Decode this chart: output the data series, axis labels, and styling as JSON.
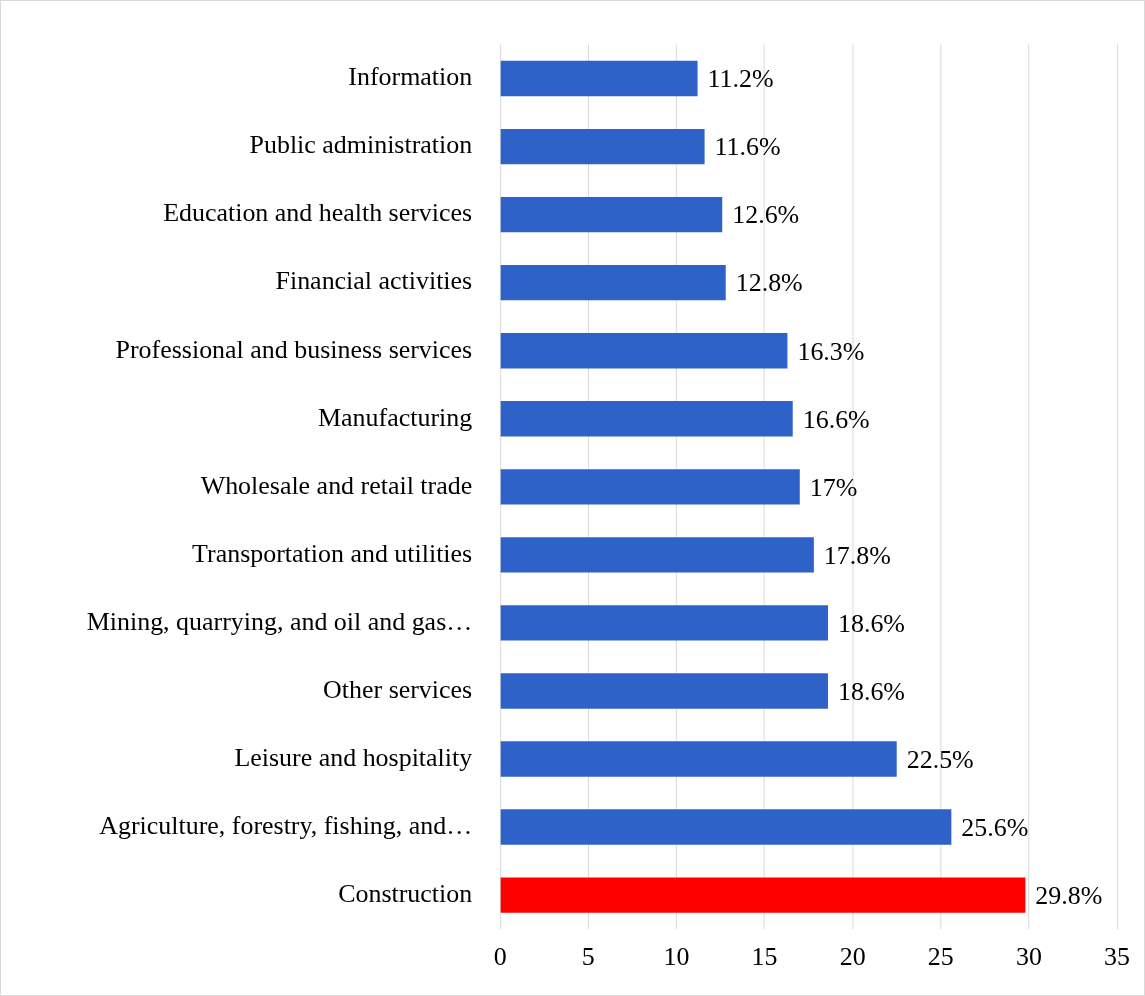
{
  "chart_data": {
    "type": "bar",
    "orientation": "horizontal",
    "categories": [
      "Information",
      "Public administration",
      "Education and health services",
      "Financial activities",
      "Professional and business services",
      "Manufacturing",
      "Wholesale and retail trade",
      "Transportation and utilities",
      "Mining, quarrying, and oil and gas…",
      "Other services",
      "Leisure and hospitality",
      "Agriculture, forestry, fishing, and…",
      "Construction"
    ],
    "values": [
      11.2,
      11.6,
      12.6,
      12.8,
      16.3,
      16.6,
      17,
      17.8,
      18.6,
      18.6,
      22.5,
      25.6,
      29.8
    ],
    "colors": [
      "#2e62c8",
      "#2e62c8",
      "#2e62c8",
      "#2e62c8",
      "#2e62c8",
      "#2e62c8",
      "#2e62c8",
      "#2e62c8",
      "#2e62c8",
      "#2e62c8",
      "#2e62c8",
      "#2e62c8",
      "#ff0000"
    ],
    "value_labels": [
      "11.2%",
      "11.6%",
      "12.6%",
      "12.8%",
      "16.3%",
      "16.6%",
      "17%",
      "17.8%",
      "18.6%",
      "18.6%",
      "22.5%",
      "25.6%",
      "29.8%"
    ],
    "xlim": [
      0,
      35
    ],
    "xticks": [
      0,
      5,
      10,
      15,
      20,
      25,
      30,
      35
    ],
    "grid": "x",
    "legend": false
  }
}
